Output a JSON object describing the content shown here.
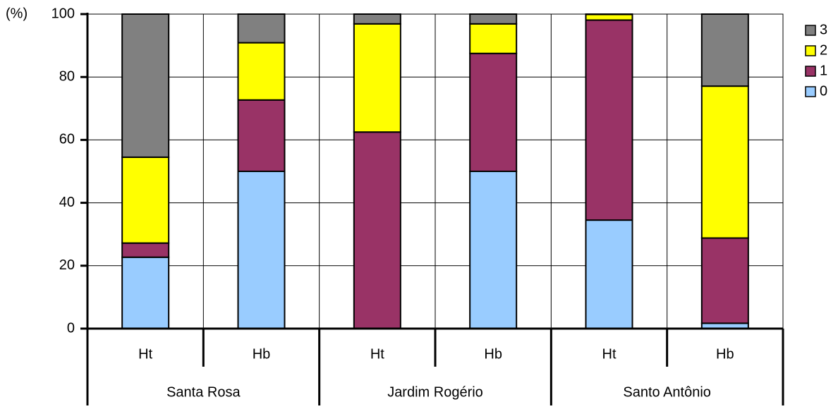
{
  "chart_data": {
    "type": "bar",
    "stacked": true,
    "title": "",
    "ylabel": "(%)",
    "ylim": [
      0,
      100
    ],
    "yticks": [
      0,
      20,
      40,
      60,
      80,
      100
    ],
    "grid": true,
    "legend_position": "right",
    "groups": [
      {
        "label": "Santa Rosa",
        "categories": [
          "Ht",
          "Hb"
        ]
      },
      {
        "label": "Jardim Rogério",
        "categories": [
          "Ht",
          "Hb"
        ]
      },
      {
        "label": "Santo Antônio",
        "categories": [
          "Ht",
          "Hb"
        ]
      }
    ],
    "categories": [
      "Ht",
      "Hb",
      "Ht",
      "Hb",
      "Ht",
      "Hb"
    ],
    "series": [
      {
        "name": "0",
        "color": "#99ccff",
        "values": [
          22.7,
          50.0,
          0.0,
          50.0,
          34.5,
          1.7
        ]
      },
      {
        "name": "1",
        "color": "#993366",
        "values": [
          4.5,
          22.7,
          62.5,
          37.5,
          63.6,
          27.1
        ]
      },
      {
        "name": "2",
        "color": "#ffff00",
        "values": [
          27.3,
          18.2,
          34.4,
          9.4,
          1.8,
          48.3
        ]
      },
      {
        "name": "3",
        "color": "#808080",
        "values": [
          45.5,
          9.1,
          3.1,
          3.1,
          0.1,
          22.9
        ]
      }
    ]
  }
}
